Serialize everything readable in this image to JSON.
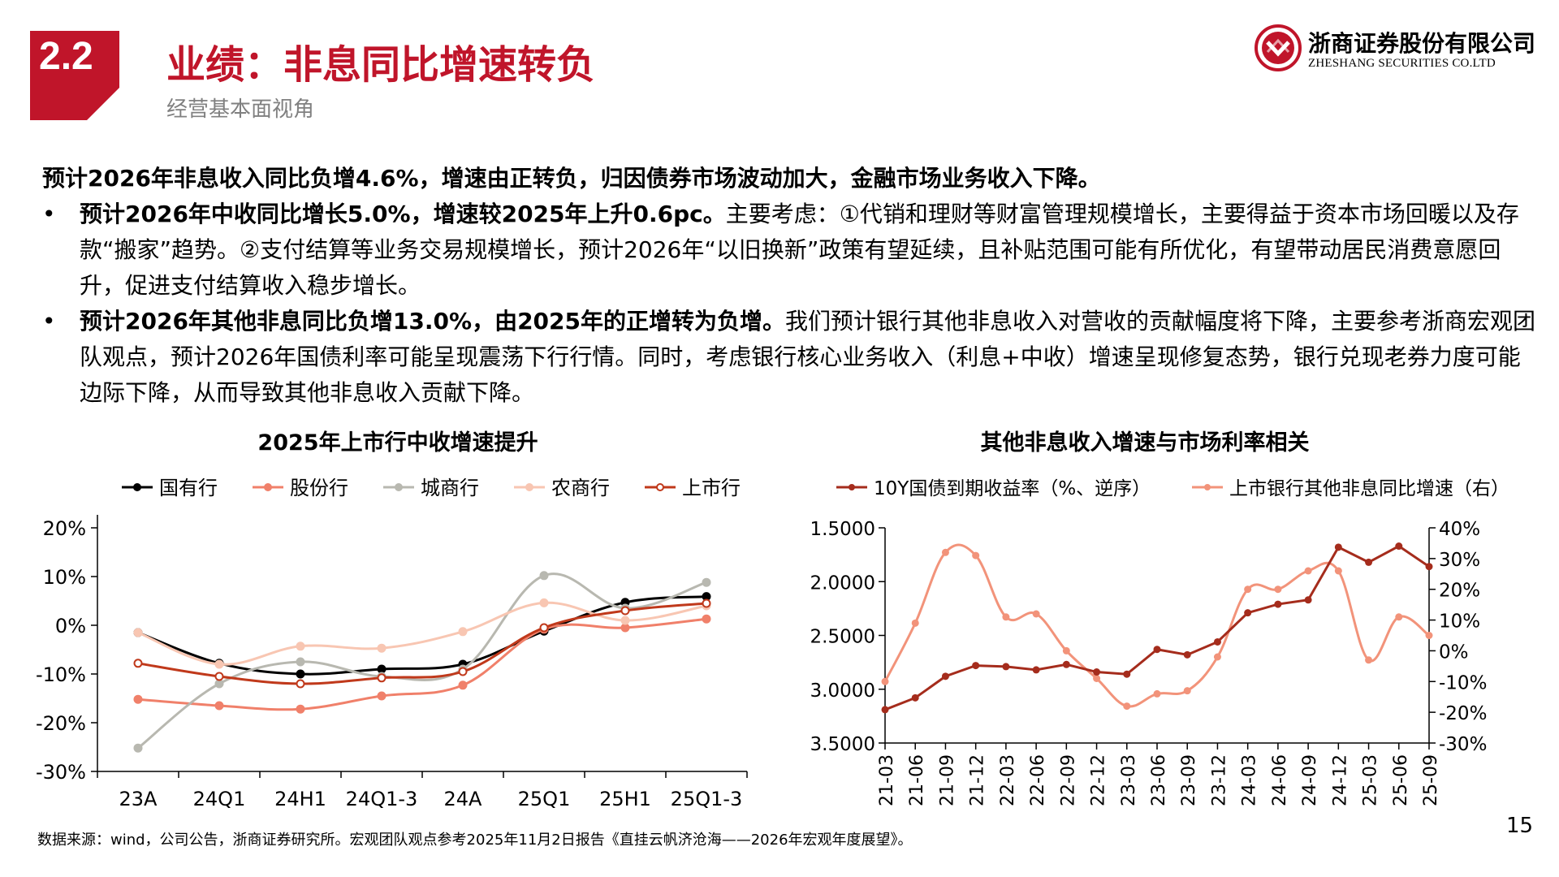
{
  "header": {
    "section_number": "2.2",
    "title": "业绩：非息同比增速转负",
    "subtitle": "经营基本面视角"
  },
  "logo": {
    "name_cn": "浙商证券股份有限公司",
    "name_en": "ZHESHANG SECURITIES CO.LTD"
  },
  "body": {
    "lead": "预计2026年非息收入同比负增4.6%，增速由正转负，归因债券市场波动加大，金融市场业务收入下降。",
    "bullets": [
      {
        "dot": "•",
        "bold": "预计2026年中收同比增长5.0%，增速较2025年上升0.6pc。",
        "text": "主要考虑：①代销和理财等财富管理规模增长，主要得益于资本市场回暖以及存款“搬家”趋势。②支付结算等业务交易规模增长，预计2026年“以旧换新”政策有望延续，且补贴范围可能有所优化，有望带动居民消费意愿回升，促进支付结算收入稳步增长。"
      },
      {
        "dot": "•",
        "bold": "预计2026年其他非息同比负增13.0%，由2025年的正增转为负增。",
        "text": "我们预计银行其他非息收入对营收的贡献幅度将下降，主要参考浙商宏观团队观点，预计2026年国债利率可能呈现震荡下行行情。同时，考虑银行核心业务收入（利息+中收）增速呈现修复态势，银行兑现老券力度可能边际下降，从而导致其他非息收入贡献下降。"
      }
    ]
  },
  "footer": {
    "source": "数据来源：wind，公司公告，浙商证券研究所。宏观团队观点参考2025年11月2日报告《直挂云帆济沧海——2026年宏观年度展望》。",
    "page": "15"
  },
  "chart_data": [
    {
      "type": "line",
      "title": "2025年上市行中收增速提升",
      "categories": [
        "23A",
        "24Q1",
        "24H1",
        "24Q1-3",
        "24A",
        "25Q1",
        "25H1",
        "25Q1-3"
      ],
      "ylim": [
        -30,
        20
      ],
      "yticks": [
        "20%",
        "10%",
        "0%",
        "-10%",
        "-20%",
        "-30%"
      ],
      "legend_position": "top",
      "series": [
        {
          "name": "国有行",
          "color": "#000000",
          "values": [
            -1.5,
            -7.8,
            -10,
            -9,
            -8,
            -1.2,
            4.7,
            5.9
          ]
        },
        {
          "name": "股份行",
          "color": "#f0806a",
          "values": [
            -15.2,
            -16.5,
            -17.2,
            -14.5,
            -12.3,
            -0.8,
            -0.5,
            1.3
          ]
        },
        {
          "name": "城商行",
          "color": "#b8b8b0",
          "values": [
            -25.2,
            -12,
            -7.5,
            -10.5,
            -9,
            10.2,
            3.5,
            8.8
          ]
        },
        {
          "name": "农商行",
          "color": "#f8c6b2",
          "values": [
            -1.5,
            -8,
            -4.3,
            -4.7,
            -1.3,
            4.6,
            1.0,
            4.0
          ]
        },
        {
          "name": "上市行",
          "color": "#c0391b",
          "values": [
            -7.8,
            -10.5,
            -12,
            -10.8,
            -9.5,
            -0.5,
            3.0,
            4.5
          ]
        }
      ]
    },
    {
      "type": "line",
      "title": "其他非息收入增速与市场利率相关",
      "categories": [
        "21-03",
        "21-06",
        "21-09",
        "21-12",
        "22-03",
        "22-06",
        "22-09",
        "22-12",
        "23-03",
        "23-06",
        "23-09",
        "23-12",
        "24-03",
        "24-06",
        "24-09",
        "24-12",
        "25-03",
        "25-06",
        "25-09"
      ],
      "y_left": {
        "ylim": [
          1.5,
          3.5
        ],
        "inverted": true,
        "ticks": [
          "1.5000",
          "2.0000",
          "2.5000",
          "3.0000",
          "3.5000"
        ]
      },
      "y_right": {
        "ylim": [
          -30,
          40
        ],
        "ticks": [
          "40%",
          "30%",
          "20%",
          "10%",
          "0%",
          "-10%",
          "-20%",
          "-30%"
        ]
      },
      "legend_position": "top",
      "series": [
        {
          "name": "10Y国债到期收益率（%、逆序）",
          "axis": "left",
          "color": "#a52c1c",
          "values": [
            3.19,
            3.08,
            2.88,
            2.78,
            2.79,
            2.82,
            2.77,
            2.84,
            2.86,
            2.63,
            2.68,
            2.56,
            2.29,
            2.21,
            2.17,
            1.68,
            1.82,
            1.67,
            1.86
          ]
        },
        {
          "name": "上市银行其他非息同比增速（右）",
          "axis": "right",
          "color": "#f2937a",
          "values": [
            -10,
            9,
            32,
            31,
            11,
            12,
            0,
            -9,
            -18,
            -14,
            -13,
            -2,
            20,
            20,
            26,
            26,
            -3,
            11,
            5
          ]
        }
      ]
    }
  ]
}
